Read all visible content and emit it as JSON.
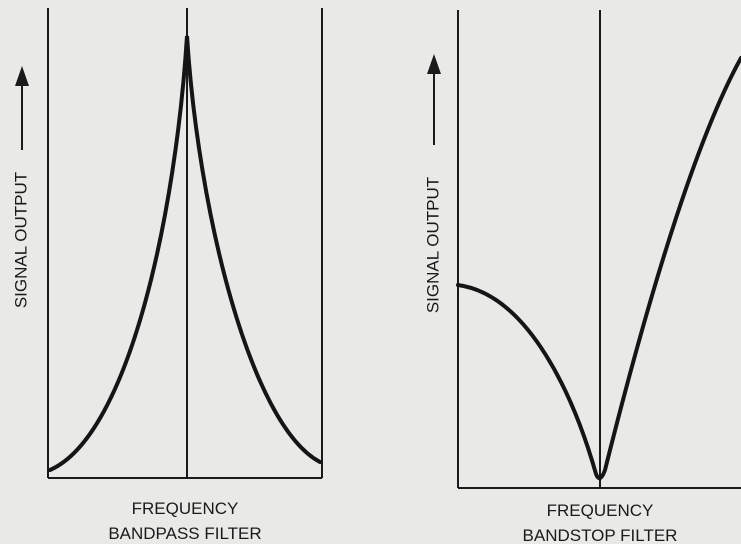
{
  "panels": [
    {
      "y_label": "SIGNAL OUTPUT",
      "x_label": "FREQUENCY",
      "caption": "BANDPASS FILTER"
    },
    {
      "y_label": "SIGNAL OUTPUT",
      "x_label": "FREQUENCY",
      "caption": "BANDSTOP FILTER"
    }
  ]
}
